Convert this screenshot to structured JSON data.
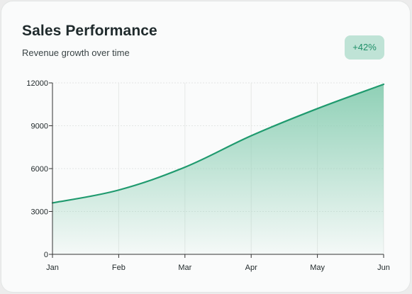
{
  "header": {
    "title": "Sales Performance",
    "subtitle": "Revenue growth over time",
    "badge": "+42%"
  },
  "colors": {
    "line": "#1f9a6e",
    "area_top": "#8fd0b6",
    "badge_bg": "#bfe3d6",
    "badge_text": "#1f8f68"
  },
  "chart_data": {
    "type": "area",
    "title": "Sales Performance",
    "subtitle": "Revenue growth over time",
    "categories": [
      "Jan",
      "Feb",
      "Mar",
      "Apr",
      "May",
      "Jun"
    ],
    "series": [
      {
        "values": [
          3600,
          4500,
          6100,
          8300,
          10200,
          11900
        ]
      }
    ],
    "ylim": [
      0,
      12000
    ],
    "yticks": [
      0,
      3000,
      6000,
      9000,
      12000
    ],
    "xlabel": "",
    "ylabel": "",
    "grid": true,
    "legend": "none"
  }
}
